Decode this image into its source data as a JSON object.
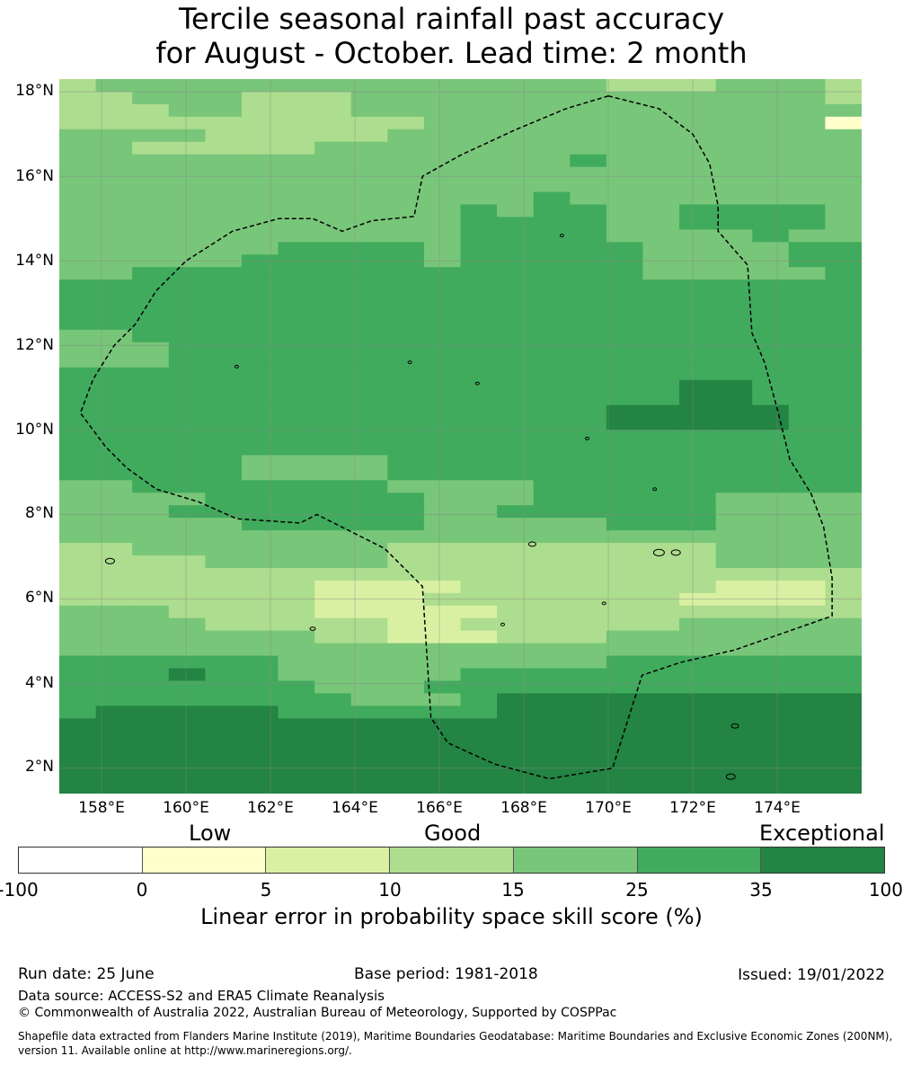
{
  "title": {
    "line1": "Tercile seasonal rainfall past accuracy",
    "line2": "for August - October. Lead time: 2 month"
  },
  "map": {
    "lat_labels": [
      "18°N",
      "16°N",
      "14°N",
      "12°N",
      "10°N",
      "8°N",
      "6°N",
      "4°N",
      "2°N"
    ],
    "lat_values": [
      18,
      16,
      14,
      12,
      10,
      8,
      6,
      4,
      2
    ],
    "lon_labels": [
      "158°E",
      "160°E",
      "162°E",
      "164°E",
      "166°E",
      "168°E",
      "170°E",
      "172°E",
      "174°E"
    ],
    "lon_values": [
      158,
      160,
      162,
      164,
      166,
      168,
      170,
      172,
      174
    ],
    "lon_range": [
      157,
      176
    ],
    "lat_range": [
      1.4,
      18.3
    ],
    "cell_colors": [
      "#ffffcc",
      "#d9f0a3",
      "#addd8e",
      "#78c679",
      "#41ab5d",
      "#238443"
    ],
    "boundary_color": "#000000",
    "grid_color": "#888888",
    "eez_boundary_lonlat": [
      [
        170.0,
        17.9
      ],
      [
        171.2,
        17.6
      ],
      [
        172.0,
        17.0
      ],
      [
        172.4,
        16.3
      ],
      [
        172.6,
        15.3
      ],
      [
        172.6,
        14.7
      ],
      [
        173.3,
        13.9
      ],
      [
        173.4,
        12.3
      ],
      [
        173.7,
        11.6
      ],
      [
        174.0,
        10.5
      ],
      [
        174.3,
        9.3
      ],
      [
        174.8,
        8.5
      ],
      [
        175.1,
        7.7
      ],
      [
        175.3,
        6.5
      ],
      [
        175.3,
        5.6
      ],
      [
        173.0,
        4.8
      ],
      [
        171.7,
        4.5
      ],
      [
        170.8,
        4.2
      ],
      [
        170.1,
        2.0
      ],
      [
        168.6,
        1.75
      ],
      [
        167.3,
        2.1
      ],
      [
        166.2,
        2.6
      ],
      [
        165.8,
        3.2
      ],
      [
        165.6,
        6.3
      ],
      [
        164.7,
        7.2
      ],
      [
        163.1,
        8.0
      ],
      [
        162.7,
        7.8
      ],
      [
        161.2,
        7.9
      ],
      [
        160.3,
        8.3
      ],
      [
        159.3,
        8.6
      ],
      [
        158.6,
        9.1
      ],
      [
        158.1,
        9.6
      ],
      [
        157.5,
        10.4
      ],
      [
        157.8,
        11.2
      ],
      [
        158.3,
        12.0
      ],
      [
        158.8,
        12.5
      ],
      [
        159.3,
        13.3
      ],
      [
        160.0,
        14.0
      ],
      [
        161.1,
        14.7
      ],
      [
        162.2,
        15.0
      ],
      [
        163.0,
        15.0
      ],
      [
        163.7,
        14.7
      ],
      [
        164.4,
        14.95
      ],
      [
        165.4,
        15.05
      ],
      [
        165.6,
        16.0
      ],
      [
        166.5,
        16.5
      ],
      [
        167.8,
        17.1
      ],
      [
        169.0,
        17.6
      ],
      [
        170.0,
        17.9
      ]
    ]
  },
  "legend": {
    "category_labels": [
      "Low",
      "Good",
      "Exceptional"
    ],
    "tick_labels": [
      "-100",
      "0",
      "5",
      "10",
      "15",
      "25",
      "35",
      "100"
    ],
    "colors": [
      "#ffffff",
      "#ffffcc",
      "#d9f0a3",
      "#addd8e",
      "#78c679",
      "#41ab5d",
      "#238443"
    ],
    "title": "Linear error in probability space skill score (%)"
  },
  "footer": {
    "run_date": "Run date: 25 June",
    "base_period": "Base period: 1981-2018",
    "issued": "Issued: 19/01/2022",
    "data_source": "Data source: ACCESS-S2 and ERA5 Climate Reanalysis",
    "copyright": "© Commonwealth of Australia 2022, Australian Bureau of Meteorology, Supported by COSPPac",
    "shapefile_line1": "Shapefile data extracted from Flanders Marine Institute (2019), Maritime Boundaries Geodatabase: Maritime Boundaries and Exclusive Economic Zones (200NM),",
    "shapefile_line2": "version 11. Available online at http://www.marineregions.org/."
  }
}
